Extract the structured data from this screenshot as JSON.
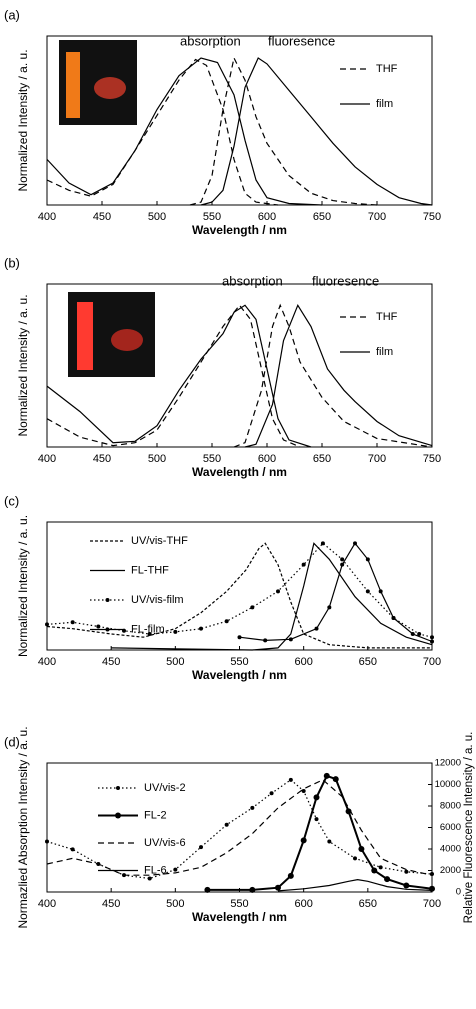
{
  "chart_data": [
    {
      "type": "line",
      "panel_label": "(a)",
      "xlabel": "Wavelength / nm",
      "ylabel": "Normalized Intensity / a. u.",
      "annotations": [
        "absorption",
        "fluoresence"
      ],
      "legend": "right",
      "xlim": [
        400,
        750
      ],
      "xticks": [
        400,
        450,
        500,
        550,
        600,
        650,
        700,
        750
      ],
      "ylim": [
        0,
        1.15
      ],
      "series": [
        {
          "name": "THF",
          "color": "#000000",
          "dash": "dashed",
          "x": [
            400,
            420,
            440,
            460,
            480,
            500,
            520,
            535,
            545,
            560,
            570,
            580,
            590,
            610
          ],
          "values": [
            0.17,
            0.1,
            0.06,
            0.14,
            0.37,
            0.61,
            0.85,
            0.99,
            0.95,
            0.65,
            0.31,
            0.08,
            0.02,
            0
          ]
        },
        {
          "color": "#000000",
          "dash": "dashed",
          "x": [
            530,
            540,
            550,
            560,
            570,
            580,
            590,
            600,
            620,
            640,
            660,
            680,
            700
          ],
          "values": [
            0,
            0.02,
            0.2,
            0.65,
            1.0,
            0.85,
            0.6,
            0.42,
            0.2,
            0.08,
            0.03,
            0.01,
            0
          ]
        },
        {
          "name": "film",
          "color": "#000000",
          "dash": "solid",
          "x": [
            400,
            420,
            440,
            460,
            480,
            500,
            520,
            540,
            555,
            570,
            580,
            590,
            600,
            620,
            650
          ],
          "values": [
            0.31,
            0.15,
            0.07,
            0.15,
            0.37,
            0.65,
            0.88,
            1.0,
            0.97,
            0.75,
            0.44,
            0.17,
            0.05,
            0.01,
            0
          ]
        },
        {
          "color": "#000000",
          "dash": "solid",
          "x": [
            540,
            550,
            560,
            570,
            580,
            592,
            600,
            620,
            640,
            660,
            680,
            700,
            720,
            740,
            750
          ],
          "values": [
            0,
            0.02,
            0.1,
            0.4,
            0.8,
            1.0,
            0.96,
            0.78,
            0.6,
            0.42,
            0.26,
            0.14,
            0.05,
            0.01,
            0
          ]
        }
      ]
    },
    {
      "type": "line",
      "panel_label": "(b)",
      "xlabel": "Wavelength / nm",
      "ylabel": "Normalized Intensity / a. u.",
      "annotations": [
        "absorption",
        "fluoresence"
      ],
      "legend": "right",
      "xlim": [
        400,
        750
      ],
      "xticks": [
        400,
        450,
        500,
        550,
        600,
        650,
        700,
        750
      ],
      "ylim": [
        0,
        1.15
      ],
      "series": [
        {
          "name": "THF",
          "color": "#000000",
          "dash": "dashed",
          "x": [
            400,
            430,
            460,
            480,
            500,
            520,
            540,
            560,
            575,
            585,
            595,
            605,
            615,
            630
          ],
          "values": [
            0.2,
            0.07,
            0.01,
            0.03,
            0.12,
            0.35,
            0.6,
            0.85,
            1.0,
            0.9,
            0.55,
            0.2,
            0.05,
            0
          ]
        },
        {
          "color": "#000000",
          "dash": "dashed",
          "x": [
            570,
            580,
            595,
            605,
            612,
            620,
            630,
            650,
            670,
            700,
            750
          ],
          "values": [
            0,
            0.03,
            0.4,
            0.85,
            1.0,
            0.85,
            0.6,
            0.35,
            0.18,
            0.06,
            0
          ]
        },
        {
          "name": "film",
          "color": "#000000",
          "dash": "solid",
          "x": [
            400,
            430,
            460,
            480,
            500,
            520,
            540,
            560,
            570,
            580,
            590,
            600,
            610,
            620,
            640
          ],
          "values": [
            0.43,
            0.25,
            0.03,
            0.04,
            0.15,
            0.4,
            0.62,
            0.8,
            0.95,
            1.0,
            0.9,
            0.55,
            0.2,
            0.05,
            0
          ]
        },
        {
          "color": "#000000",
          "dash": "solid",
          "x": [
            580,
            590,
            605,
            615,
            628,
            640,
            655,
            670,
            680,
            700,
            720,
            750
          ],
          "values": [
            0,
            0.02,
            0.3,
            0.75,
            1.0,
            0.85,
            0.55,
            0.4,
            0.32,
            0.18,
            0.08,
            0.01
          ]
        }
      ]
    },
    {
      "type": "line",
      "panel_label": "(c)",
      "xlabel": "Wavelength / nm",
      "ylabel": "Normalized Intensity / a. u.",
      "legend": "upper left",
      "xlim": [
        400,
        700
      ],
      "xticks": [
        400,
        450,
        500,
        550,
        600,
        650,
        700
      ],
      "ylim": [
        0,
        1.2
      ],
      "series": [
        {
          "name": "UV/vis-THF",
          "color": "#000000",
          "dash": "short-dashed",
          "x": [
            400,
            420,
            450,
            475,
            500,
            520,
            540,
            555,
            565,
            570,
            580,
            590,
            600,
            620,
            650,
            700
          ],
          "values": [
            0.22,
            0.2,
            0.15,
            0.12,
            0.2,
            0.35,
            0.55,
            0.75,
            0.95,
            1.0,
            0.8,
            0.45,
            0.15,
            0.05,
            0.02,
            0.02
          ]
        },
        {
          "name": "FL-THF",
          "color": "#000000",
          "dash": "solid",
          "x": [
            450,
            500,
            560,
            580,
            590,
            600,
            608,
            620,
            640,
            660,
            680,
            700
          ],
          "values": [
            0.02,
            0.01,
            0,
            0.02,
            0.15,
            0.6,
            1.0,
            0.85,
            0.5,
            0.25,
            0.12,
            0.05
          ]
        },
        {
          "name": "UV/vis-film",
          "color": "#000000",
          "dash": "dotted",
          "marker": true,
          "x": [
            400,
            420,
            440,
            460,
            480,
            500,
            520,
            540,
            560,
            580,
            600,
            615,
            630,
            650,
            670,
            690,
            700
          ],
          "values": [
            0.24,
            0.26,
            0.22,
            0.18,
            0.15,
            0.17,
            0.2,
            0.27,
            0.4,
            0.55,
            0.8,
            1.0,
            0.85,
            0.55,
            0.3,
            0.15,
            0.12
          ]
        },
        {
          "name": "FL-film",
          "color": "#000000",
          "dash": "solid",
          "marker": true,
          "x": [
            550,
            570,
            590,
            610,
            620,
            630,
            640,
            650,
            660,
            670,
            685,
            700
          ],
          "values": [
            0.12,
            0.09,
            0.1,
            0.2,
            0.4,
            0.8,
            1.0,
            0.85,
            0.55,
            0.3,
            0.15,
            0.08
          ]
        }
      ]
    },
    {
      "type": "line",
      "panel_label": "(d)",
      "xlabel": "Wavelength / nm",
      "ylabel": "Normazlied Absorption Intensity / a. u.",
      "y2label": "Relative Fluorescence Intensity / a. u.",
      "legend": "upper left",
      "xlim": [
        400,
        700
      ],
      "xticks": [
        400,
        450,
        500,
        550,
        600,
        650,
        700
      ],
      "ylim": [
        0,
        1.15
      ],
      "y2lim": [
        0,
        12000
      ],
      "y2ticks": [
        0,
        2000,
        4000,
        6000,
        8000,
        10000,
        12000
      ],
      "series": [
        {
          "name": "UV/vis-2",
          "color": "#000000",
          "dash": "dotted",
          "marker": true,
          "x": [
            400,
            420,
            440,
            460,
            480,
            500,
            520,
            540,
            560,
            575,
            590,
            600,
            610,
            620,
            640,
            660,
            680,
            700
          ],
          "values": [
            0.45,
            0.38,
            0.25,
            0.15,
            0.12,
            0.2,
            0.4,
            0.6,
            0.75,
            0.88,
            1.0,
            0.9,
            0.65,
            0.45,
            0.3,
            0.22,
            0.18,
            0.16
          ]
        },
        {
          "name": "FL-2",
          "color": "#000000",
          "dash": "thick",
          "marker": true,
          "axis": "y2",
          "x": [
            525,
            560,
            580,
            590,
            600,
            610,
            618,
            625,
            635,
            645,
            655,
            665,
            680,
            700
          ],
          "values": [
            200,
            200,
            400,
            1500,
            4800,
            8800,
            10800,
            10500,
            7500,
            4000,
            2000,
            1200,
            600,
            300
          ]
        },
        {
          "name": "UV/vis-6",
          "color": "#000000",
          "dash": "dashed",
          "x": [
            400,
            420,
            440,
            460,
            480,
            500,
            520,
            540,
            560,
            580,
            600,
            615,
            630,
            645,
            660,
            680,
            700
          ],
          "values": [
            0.25,
            0.3,
            0.25,
            0.15,
            0.15,
            0.17,
            0.22,
            0.35,
            0.52,
            0.75,
            0.92,
            1.0,
            0.85,
            0.55,
            0.3,
            0.2,
            0.15
          ]
        },
        {
          "name": "FL-6",
          "color": "#000000",
          "dash": "solid",
          "axis": "y2",
          "x": [
            580,
            600,
            620,
            635,
            642,
            650,
            665,
            680,
            700
          ],
          "values": [
            100,
            300,
            600,
            1000,
            1150,
            1000,
            500,
            250,
            150
          ]
        }
      ]
    }
  ]
}
